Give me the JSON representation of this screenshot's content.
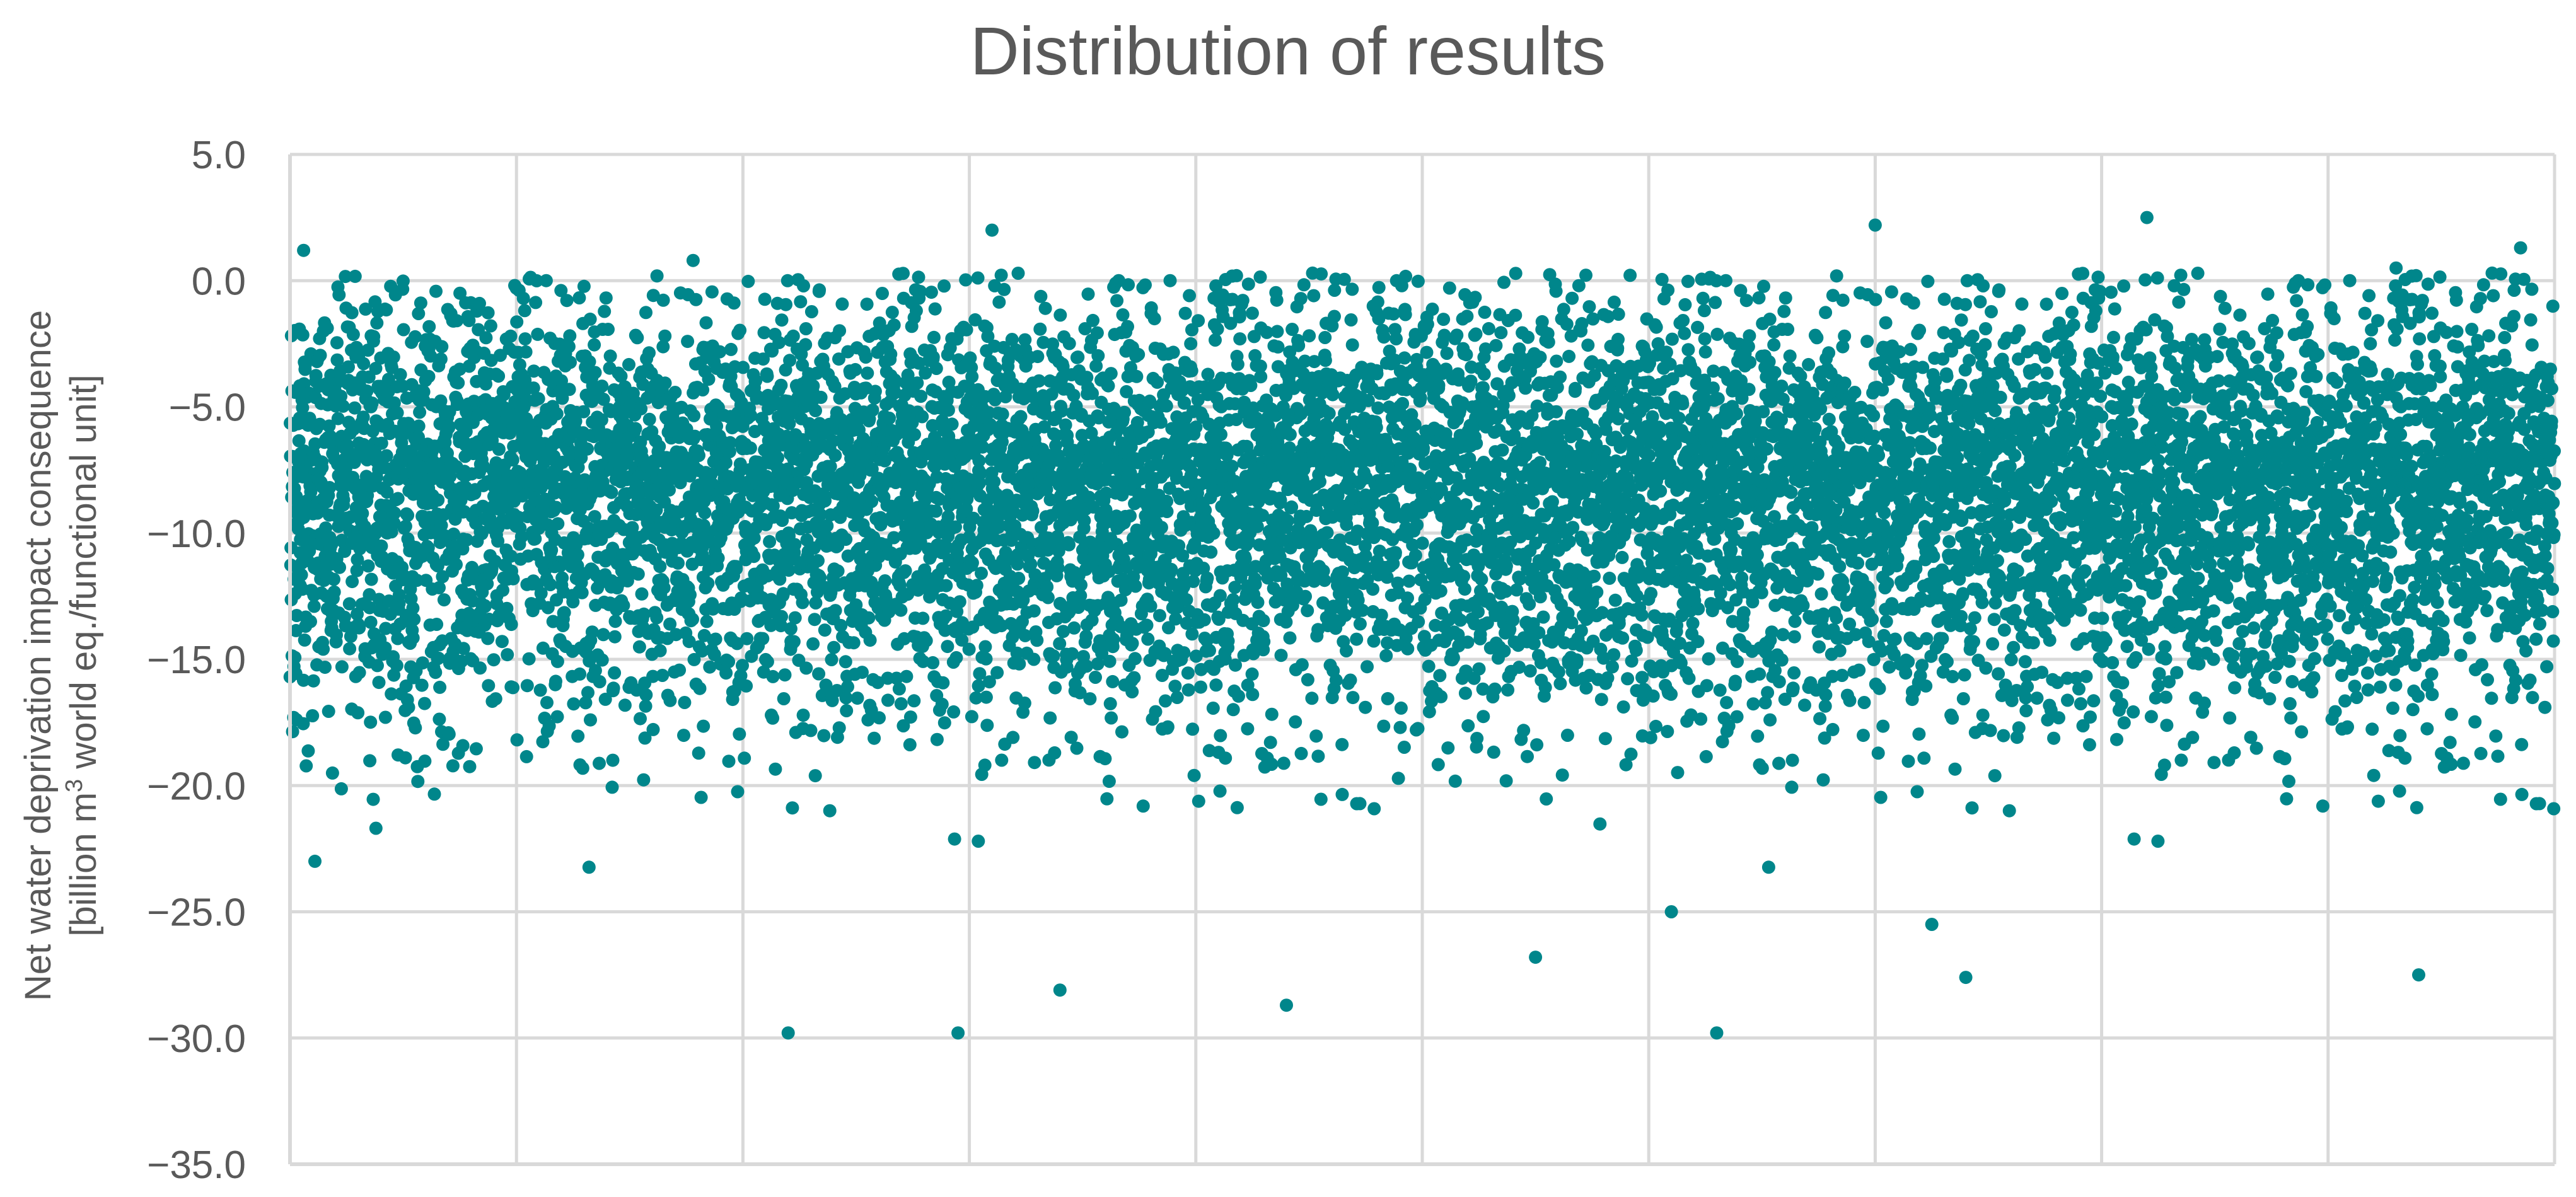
{
  "colors": {
    "marker": "#00868B",
    "grid": "#d9d9d9",
    "axis": "#d9d9d9",
    "text": "#595959"
  },
  "chart_data": {
    "type": "scatter",
    "title": "Distribution of results",
    "xlabel": "",
    "ylabel_line1": "Net water deprivation impact consequence",
    "ylabel_line2_pre": "[billion m",
    "ylabel_line2_sup": "3",
    "ylabel_line2_post": " world eq./functional unit]",
    "ylim": [
      -35,
      5
    ],
    "xlim": [
      0,
      10000
    ],
    "y_ticks": [
      5,
      0,
      -5,
      -10,
      -15,
      -20,
      -25,
      -30,
      -35
    ],
    "y_tick_labels": [
      "5.0",
      "0.0",
      "−5.0",
      "−10.0",
      "−15.0",
      "−20.0",
      "−25.0",
      "−30.0",
      "−35.0"
    ],
    "x_gridlines": [
      0,
      1000,
      2000,
      3000,
      4000,
      5000,
      6000,
      7000,
      8000,
      9000,
      10000
    ],
    "grid": true,
    "legend": "none",
    "series": [
      {
        "points_approx": 10000,
        "distribution": "approximately normal, mean about -8.5, std about 4.2, values mostly between -20 and 0",
        "x": [
          60,
          110,
          1780,
          2200,
          2950,
          3100,
          3400,
          4400,
          5500,
          6100,
          6300,
          7000,
          7250,
          7400,
          8200,
          9400,
          9300,
          9850
        ],
        "y": [
          1.2,
          -23,
          0.8,
          -29.8,
          -29.8,
          2.0,
          -28.1,
          -28.7,
          -26.8,
          -25.0,
          -29.8,
          2.2,
          -25.5,
          -27.6,
          2.5,
          -27.5,
          0.5,
          1.3
        ]
      }
    ]
  }
}
